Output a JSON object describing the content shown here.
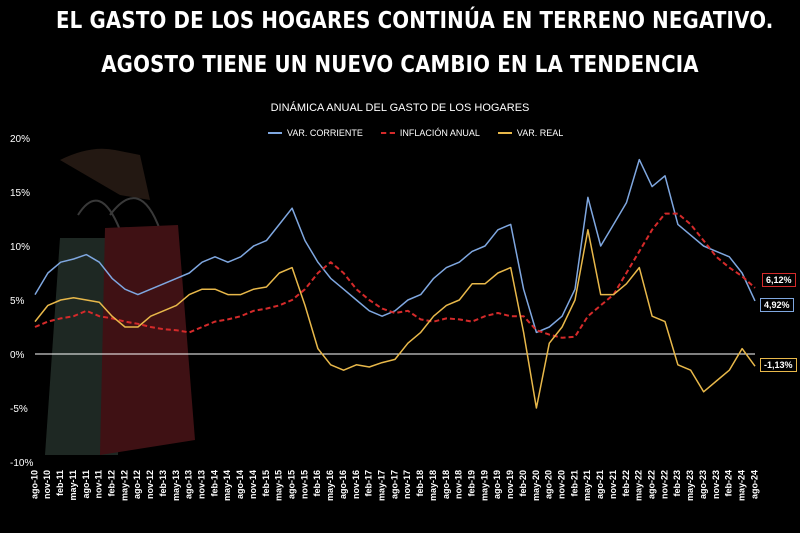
{
  "headline": {
    "line1": "EL GASTO DE LOS HOGARES CONTINÚA EN TERRENO NEGATIVO.",
    "line2": "AGOSTO TIENE UN NUEVO CAMBIO EN LA TENDENCIA"
  },
  "colors": {
    "corriente": "#7fa7e0",
    "inflacion": "#d42a2a",
    "real": "#e8b84a"
  },
  "chart_data": {
    "type": "line",
    "title": "DINÁMICA ANUAL DEL GASTO DE LOS HOGARES",
    "ylim": [
      -10,
      20
    ],
    "yticks": [
      "20%",
      "15%",
      "10%",
      "5%",
      "0%",
      "-5%",
      "-10%"
    ],
    "ytick_values": [
      20,
      15,
      10,
      5,
      0,
      -5,
      -10
    ],
    "xtick_labels": [
      "ago-10",
      "nov-10",
      "feb-11",
      "may-11",
      "ago-11",
      "nov-11",
      "feb-12",
      "may-12",
      "ago-12",
      "nov-12",
      "feb-13",
      "may-13",
      "ago-13",
      "nov-13",
      "feb-14",
      "may-14",
      "ago-14",
      "nov-14",
      "feb-15",
      "may-15",
      "ago-15",
      "nov-15",
      "feb-16",
      "may-16",
      "ago-16",
      "nov-16",
      "feb-17",
      "may-17",
      "ago-17",
      "nov-17",
      "feb-18",
      "may-18",
      "ago-18",
      "nov-18",
      "feb-19",
      "may-19",
      "ago-19",
      "nov-19",
      "feb-20",
      "may-20",
      "ago-20",
      "nov-20",
      "feb-21",
      "may-21",
      "ago-21",
      "nov-21",
      "feb-22",
      "may-22",
      "ago-22",
      "nov-22",
      "feb-23",
      "may-23",
      "ago-23",
      "nov-23",
      "feb-24",
      "may-24",
      "ago-24"
    ],
    "legend": "top-center",
    "grid": false,
    "series": [
      {
        "name": "VAR. CORRIENTE",
        "values": [
          5.5,
          7.5,
          8.5,
          8.8,
          9.2,
          8.5,
          7.0,
          6.0,
          5.5,
          6.0,
          6.5,
          7.0,
          7.5,
          8.5,
          9.0,
          8.5,
          9.0,
          10.0,
          10.5,
          12.0,
          13.5,
          10.5,
          8.5,
          7.0,
          6.0,
          5.0,
          4.0,
          3.5,
          4.0,
          5.0,
          5.5,
          7.0,
          8.0,
          8.5,
          9.5,
          10.0,
          11.5,
          12.0,
          6.0,
          2.0,
          2.5,
          3.5,
          6.0,
          14.5,
          10.0,
          12.0,
          14.0,
          18.0,
          15.5,
          16.5,
          12.0,
          11.0,
          10.0,
          9.5,
          9.0,
          7.5,
          4.92
        ]
      },
      {
        "name": "INFLACIÓN ANUAL",
        "values": [
          2.5,
          3.0,
          3.3,
          3.5,
          4.0,
          3.5,
          3.3,
          3.0,
          2.8,
          2.5,
          2.3,
          2.2,
          2.0,
          2.5,
          3.0,
          3.2,
          3.5,
          4.0,
          4.2,
          4.5,
          5.0,
          6.0,
          7.5,
          8.5,
          7.5,
          6.0,
          5.0,
          4.2,
          3.8,
          4.0,
          3.2,
          3.0,
          3.3,
          3.2,
          3.0,
          3.5,
          3.8,
          3.5,
          3.5,
          2.2,
          1.8,
          1.5,
          1.6,
          3.5,
          4.5,
          5.5,
          7.5,
          9.5,
          11.5,
          13.0,
          13.0,
          12.0,
          10.5,
          9.0,
          8.0,
          7.2,
          6.12
        ]
      },
      {
        "name": "VAR. REAL",
        "values": [
          3.0,
          4.5,
          5.0,
          5.2,
          5.0,
          4.8,
          3.5,
          2.5,
          2.5,
          3.5,
          4.0,
          4.5,
          5.5,
          6.0,
          6.0,
          5.5,
          5.5,
          6.0,
          6.2,
          7.5,
          8.0,
          4.5,
          0.5,
          -1.0,
          -1.5,
          -1.0,
          -1.2,
          -0.8,
          -0.5,
          1.0,
          2.0,
          3.5,
          4.5,
          5.0,
          6.5,
          6.5,
          7.5,
          8.0,
          2.0,
          -5.0,
          1.0,
          2.5,
          5.0,
          11.5,
          5.5,
          5.5,
          6.5,
          8.0,
          3.5,
          3.0,
          -1.0,
          -1.5,
          -3.5,
          -2.5,
          -1.5,
          0.5,
          -1.13
        ]
      }
    ],
    "end_labels": [
      "6,12%",
      "4,92%",
      "-1,13%"
    ]
  }
}
